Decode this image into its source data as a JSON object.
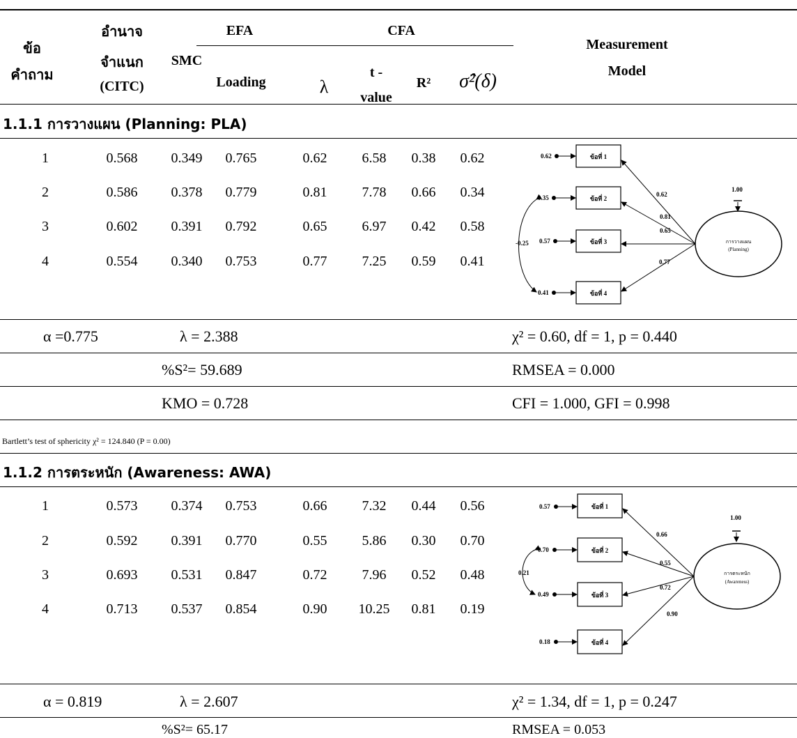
{
  "header": {
    "item": "ข้อ",
    "item2": "คำถาม",
    "power": "อำนาจ",
    "power2": "จำแนก",
    "citc": "(CITC)",
    "smc": "SMC",
    "efa": "EFA",
    "loading": "Loading",
    "cfa": "CFA",
    "lambda": "λ",
    "t": "t -",
    "value": "value",
    "r2": "R²",
    "sigma": "σ̂²(δ)",
    "mm": "Measurement",
    "model": "Model"
  },
  "section1": {
    "title": "1.1.1  การวางแผน (Planning: PLA)",
    "rows": [
      [
        "1",
        "0.568",
        "0.349",
        "0.765",
        "0.62",
        "6.58",
        "0.38",
        "0.62"
      ],
      [
        "2",
        "0.586",
        "0.378",
        "0.779",
        "0.81",
        "7.78",
        "0.66",
        "0.34"
      ],
      [
        "3",
        "0.602",
        "0.391",
        "0.792",
        "0.65",
        "6.97",
        "0.42",
        "0.58"
      ],
      [
        "4",
        "0.554",
        "0.340",
        "0.753",
        "0.77",
        "7.25",
        "0.59",
        "0.41"
      ]
    ],
    "alpha": "α =0.775",
    "lambda": "λ = 2.388",
    "chi": "χ² = 0.60, df = 1, p = 0.440",
    "s2": "%S²= 59.689",
    "rmsea": "RMSEA = 0.000",
    "kmo": "KMO = 0.728",
    "cfi": "CFI = 1.000, GFI = 0.998",
    "bartlett": "Bartlett’s test of sphericity χ² = 124.840 (P = 0.00)",
    "model": {
      "errors": [
        "0.62",
        "0.35",
        "0.57",
        "0.41"
      ],
      "boxes": [
        "ข้อที่ 1",
        "ข้อที่ 2",
        "ข้อที่ 3",
        "ข้อที่ 4"
      ],
      "loadings": [
        "0.62",
        "0.81",
        "0.65",
        "0.77"
      ],
      "cov": "-0.25",
      "fix": "1.00",
      "factor": "การวางแผน",
      "factor_en": "(Planning)"
    }
  },
  "section2": {
    "title": "1.1.2  การตระหนัก (Awareness: AWA)",
    "rows": [
      [
        "1",
        "0.573",
        "0.374",
        "0.753",
        "0.66",
        "7.32",
        "0.44",
        "0.56"
      ],
      [
        "2",
        "0.592",
        "0.391",
        "0.770",
        "0.55",
        "5.86",
        "0.30",
        "0.70"
      ],
      [
        "3",
        "0.693",
        "0.531",
        "0.847",
        "0.72",
        "7.96",
        "0.52",
        "0.48"
      ],
      [
        "4",
        "0.713",
        "0.537",
        "0.854",
        "0.90",
        "10.25",
        "0.81",
        "0.19"
      ]
    ],
    "alpha": "α = 0.819",
    "lambda": "λ = 2.607",
    "chi": "χ² = 1.34, df = 1, p = 0.247",
    "s2": "%S²= 65.17",
    "rmsea": "RMSEA = 0.053",
    "model": {
      "errors": [
        "0.57",
        "0.70",
        "0.49",
        "0.18"
      ],
      "boxes": [
        "ข้อที่ 1",
        "ข้อที่ 2",
        "ข้อที่ 3",
        "ข้อที่ 4"
      ],
      "loadings": [
        "0.66",
        "0.55",
        "0.72",
        "0.90"
      ],
      "cov": "0.21",
      "fix": "1.00",
      "factor": "การตระหนัก",
      "factor_en": "(Awareness)"
    }
  }
}
